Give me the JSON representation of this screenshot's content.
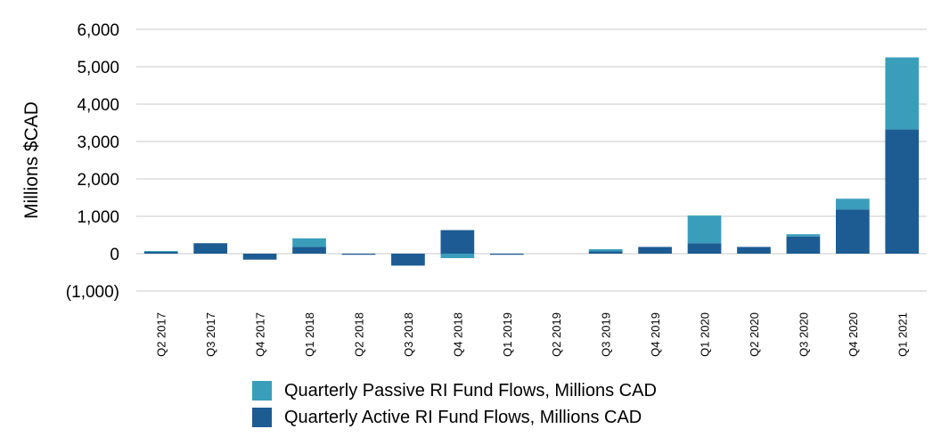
{
  "chart_data": {
    "type": "bar",
    "stacked": true,
    "ylabel": "Millions $CAD",
    "ylim": [
      -1000,
      6000
    ],
    "yticks": [
      "6,000",
      "5,000",
      "4,000",
      "3,000",
      "2,000",
      "1,000",
      "0",
      "(1,000)"
    ],
    "ytick_values": [
      6000,
      5000,
      4000,
      3000,
      2000,
      1000,
      0,
      -1000
    ],
    "grid": true,
    "legend_position": "bottom",
    "categories": [
      "Q2 2017",
      "Q3 2017",
      "Q4 2017",
      "Q1 2018",
      "Q2 2018",
      "Q3 2018",
      "Q4 2018",
      "Q1 2019",
      "Q2 2019",
      "Q3 2019",
      "Q4 2019",
      "Q1 2020",
      "Q2 2020",
      "Q3 2020",
      "Q4 2020",
      "Q1 2021"
    ],
    "series": [
      {
        "name": "Quarterly Active RI Fund Flows, Millions CAD",
        "color": "#1d5b93",
        "values": [
          50,
          280,
          -160,
          180,
          -30,
          -320,
          630,
          -30,
          0,
          60,
          180,
          280,
          180,
          460,
          1180,
          3320
        ]
      },
      {
        "name": "Quarterly Passive RI Fund Flows, Millions CAD",
        "color": "#3a9ebb",
        "values": [
          20,
          0,
          0,
          230,
          0,
          0,
          -120,
          0,
          0,
          60,
          0,
          740,
          0,
          60,
          290,
          1930
        ]
      }
    ],
    "legend_order": [
      1,
      0
    ]
  }
}
